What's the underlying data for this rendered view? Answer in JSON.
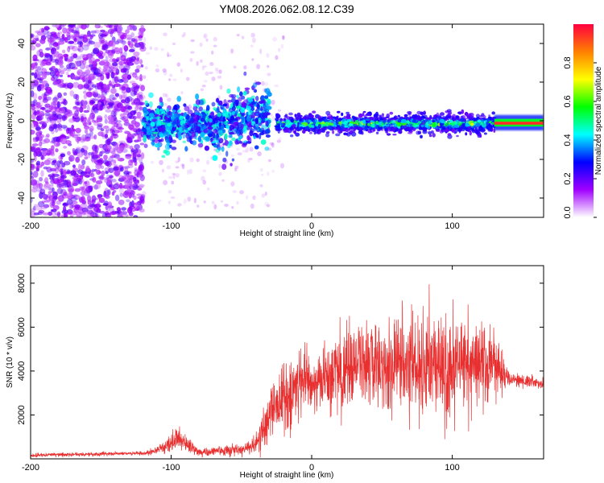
{
  "chart_data": [
    {
      "type": "heatmap",
      "title": "YM08.2026.062.08.12.C39",
      "xlabel": "Height of straight line (km)",
      "ylabel": "Frequency (Hz)",
      "xlim": [
        -200,
        165
      ],
      "ylim": [
        -50,
        50
      ],
      "xticks": [
        -200,
        -100,
        0,
        100
      ],
      "yticks": [
        -40,
        -20,
        0,
        20,
        40
      ],
      "colorbar": {
        "label": "Normalized spectral amplitude",
        "range": [
          0,
          1
        ],
        "ticks": [
          "0.0",
          "0.2",
          "0.4",
          "0.6",
          "0.8"
        ],
        "colors": [
          "#ffffff",
          "#a000ff",
          "#0000ff",
          "#00ffff",
          "#00ff00",
          "#ffff00",
          "#ff8000",
          "#ff0040"
        ]
      },
      "regions": [
        {
          "name": "noise",
          "x_range": [
            -200,
            -120
          ],
          "freq_range": [
            -50,
            50
          ],
          "amplitude": 0.15
        },
        {
          "name": "echo_onset",
          "x_range": [
            -120,
            -30
          ],
          "freq_range": [
            -10,
            10
          ],
          "amplitude": 0.3
        },
        {
          "name": "echo_main",
          "x_range": [
            -25,
            130
          ],
          "freq_range": [
            -5,
            3
          ],
          "amplitude": 0.5
        },
        {
          "name": "echo_tail",
          "x_range": [
            130,
            165
          ],
          "freq_range": [
            -2,
            1
          ],
          "amplitude": 0.9
        }
      ]
    },
    {
      "type": "line",
      "xlabel": "Height of straight line (km)",
      "ylabel": "SNR (10 * v/v)",
      "xlim": [
        -200,
        165
      ],
      "ylim": [
        0,
        8800
      ],
      "xticks": [
        -200,
        -100,
        0,
        100
      ],
      "yticks": [
        2000,
        4000,
        6000,
        8000
      ],
      "series": [
        {
          "name": "SNR",
          "color": "#e83030",
          "x": [
            -200,
            -180,
            -160,
            -140,
            -120,
            -110,
            -100,
            -95,
            -90,
            -80,
            -70,
            -60,
            -50,
            -40,
            -35,
            -30,
            -25,
            -20,
            -15,
            -10,
            -5,
            0,
            10,
            20,
            30,
            40,
            50,
            60,
            70,
            80,
            90,
            95,
            100,
            105,
            110,
            120,
            130,
            140,
            150,
            165
          ],
          "values": [
            150,
            200,
            200,
            250,
            250,
            400,
            700,
            900,
            700,
            300,
            350,
            400,
            450,
            600,
            1200,
            1800,
            2500,
            2800,
            3000,
            3500,
            3700,
            3300,
            3700,
            4100,
            4200,
            4300,
            4100,
            4200,
            4300,
            4300,
            4100,
            3600,
            3800,
            4600,
            4300,
            4300,
            4300,
            3600,
            3600,
            3400
          ],
          "noise_amplitude": [
            80,
            80,
            80,
            80,
            80,
            150,
            400,
            500,
            400,
            150,
            200,
            200,
            250,
            300,
            900,
            1200,
            1300,
            1500,
            1400,
            1400,
            1500,
            1200,
            1400,
            1600,
            1700,
            1800,
            1700,
            1900,
            2000,
            2100,
            2100,
            2400,
            2200,
            2000,
            1900,
            1600,
            1400,
            400,
            300,
            200
          ]
        }
      ]
    }
  ]
}
